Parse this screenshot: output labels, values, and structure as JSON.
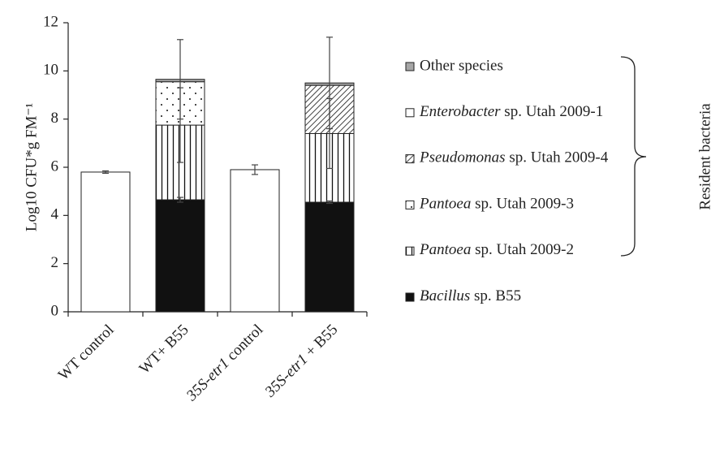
{
  "chart_data": {
    "type": "stacked-bar",
    "y_label": "Log10 CFU*g FM⁻¹",
    "categories": [
      "WT control",
      "WT+ B55",
      "35S-etr1 control",
      "35S-etr1 + B55"
    ],
    "categories_italic_first_word": [
      false,
      false,
      true,
      true
    ],
    "ylim": [
      0,
      12
    ],
    "yticks": [
      0,
      2,
      4,
      6,
      8,
      10,
      12
    ],
    "series": [
      {
        "name": "Bacillus sp. B55",
        "color": "#111111",
        "pattern": "solid",
        "italic_first_word": true,
        "values": [
          null,
          4.65,
          null,
          4.55
        ],
        "errors": [
          null,
          0.1,
          null,
          0.05
        ]
      },
      {
        "name": "Pantoea sp. Utah 2009-2",
        "color": "#111111",
        "pattern": "vertical-lines",
        "italic_first_word": true,
        "values": [
          null,
          3.1,
          null,
          2.85
        ],
        "errors": [
          null,
          1.55,
          null,
          1.45
        ]
      },
      {
        "name": "Pantoea sp. Utah 2009-3",
        "color": "#111111",
        "pattern": "dots",
        "italic_first_word": true,
        "values": [
          null,
          1.8,
          null,
          null
        ],
        "errors": [
          null,
          null,
          null,
          null
        ]
      },
      {
        "name": "Pseudomonas sp. Utah 2009-4",
        "color": "#111111",
        "pattern": "diagonal-hatch",
        "italic_first_word": true,
        "values": [
          null,
          null,
          null,
          2.0
        ],
        "errors": [
          null,
          null,
          null,
          null
        ]
      },
      {
        "name": "Enterobacter sp. Utah 2009-1",
        "color": "#ffffff",
        "pattern": "solid",
        "italic_first_word": true,
        "values": [
          5.8,
          null,
          5.9,
          null
        ],
        "errors": [
          0.05,
          null,
          0.2,
          null
        ]
      },
      {
        "name": "Other species",
        "color": "#a6a6a6",
        "pattern": "solid",
        "italic_first_word": false,
        "values": [
          null,
          0.1,
          null,
          0.1
        ],
        "errors": [
          null,
          1.65,
          null,
          1.9
        ]
      }
    ],
    "annotation": "Resident bacteria"
  }
}
